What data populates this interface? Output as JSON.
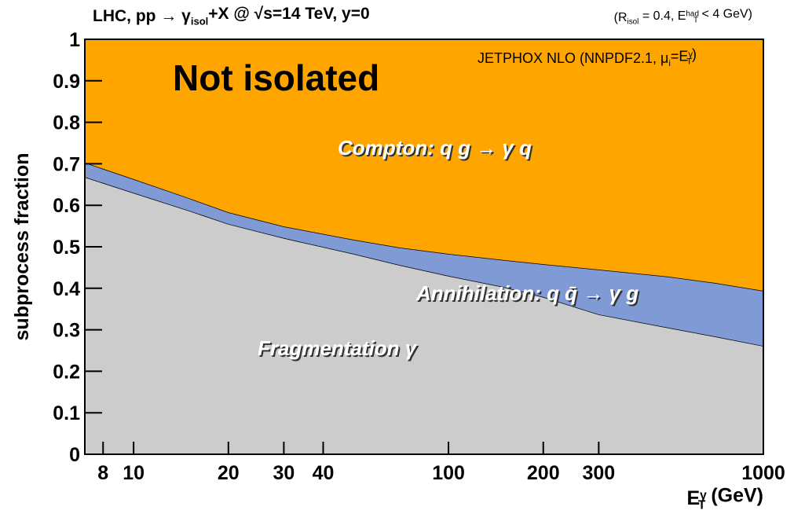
{
  "chart_data": {
    "type": "stacked_area",
    "x_scale": "log",
    "xlim": [
      7,
      1000
    ],
    "ylim": [
      0,
      1
    ],
    "xticks": [
      8,
      10,
      20,
      30,
      40,
      100,
      200,
      300,
      1000
    ],
    "yticks": [
      0,
      0.1,
      0.2,
      0.3,
      0.4,
      0.5,
      0.6,
      0.7,
      0.8,
      0.9,
      1
    ],
    "x": [
      7,
      10,
      15,
      20,
      30,
      50,
      70,
      100,
      150,
      200,
      300,
      500,
      700,
      1000
    ],
    "series": [
      {
        "name": "Fragmentation",
        "color": "#cccccc",
        "values": [
          0.668,
          0.63,
          0.587,
          0.555,
          0.521,
          0.483,
          0.456,
          0.43,
          0.403,
          0.379,
          0.337,
          0.305,
          0.284,
          0.261
        ]
      },
      {
        "name": "Annihilation",
        "color": "#7f9ad4",
        "values": [
          0.035,
          0.033,
          0.03,
          0.028,
          0.028,
          0.034,
          0.042,
          0.053,
          0.065,
          0.079,
          0.108,
          0.123,
          0.129,
          0.133
        ]
      },
      {
        "name": "Compton",
        "color": "#ffa500",
        "values": [
          0.297,
          0.337,
          0.383,
          0.417,
          0.451,
          0.483,
          0.502,
          0.517,
          0.532,
          0.542,
          0.555,
          0.572,
          0.587,
          0.606
        ]
      }
    ],
    "title": [
      {
        "text": "LHC, pp → γ"
      },
      {
        "text": "isol",
        "shift": "sub"
      },
      {
        "text": "+X @ √s=14 TeV, y=0"
      }
    ],
    "subtitle": [
      {
        "text": "(R"
      },
      {
        "text": "isol",
        "shift": "sub"
      },
      {
        "text": " = 0.4, E"
      },
      {
        "text": "had",
        "shift": "sup"
      },
      {
        "text": "T",
        "shift": "sub"
      },
      {
        "text": " < 4 GeV)"
      }
    ],
    "x_label": [
      {
        "text": "E"
      },
      {
        "text": "γ",
        "shift": "sup"
      },
      {
        "text": "T",
        "shift": "sub"
      },
      {
        "text": " (GeV)"
      }
    ],
    "y_label": "subprocess fraction",
    "annotations": [
      [
        {
          "text": "Not isolated"
        }
      ],
      [
        {
          "text": "JETPHOX NLO (NNPDF2.1, μ"
        },
        {
          "text": "i",
          "shift": "sub"
        },
        {
          "text": "=E"
        },
        {
          "text": "γ",
          "shift": "sup"
        },
        {
          "text": "T",
          "shift": "sub"
        },
        {
          "text": ")"
        }
      ],
      [
        {
          "text": "Compton: q g → γ  q"
        }
      ],
      [
        {
          "text": "Annihilation: q q̄ → γ  g"
        }
      ],
      [
        {
          "text": "Fragmentation γ"
        }
      ]
    ]
  }
}
